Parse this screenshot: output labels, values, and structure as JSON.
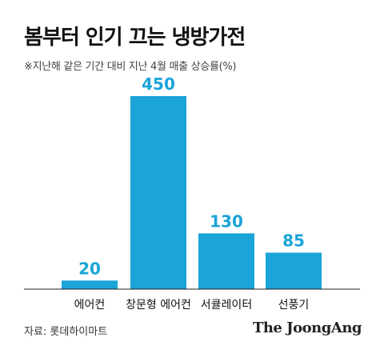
{
  "title": "봄부터 인기 끄는 냉방가전",
  "subtitle": "※지난해 같은 기간 대비 지난 4월 매출 상승률(%)",
  "source": "자료: 롯데하이마트",
  "brand": "The JoongAng",
  "colors": {
    "bar": "#1aa4d8",
    "value_label": "#1aa4d8",
    "axis": "#222222"
  },
  "chart_data": {
    "type": "bar",
    "title": "봄부터 인기 끄는 냉방가전",
    "subtitle": "※지난해 같은 기간 대비 지난 4월 매출 상승률(%)",
    "categories": [
      "에어컨",
      "창문형 에어컨",
      "서큘레이터",
      "선풍기"
    ],
    "values": [
      20,
      450,
      130,
      85
    ],
    "data_labels": [
      "20",
      "450",
      "130",
      "85"
    ],
    "xlabel": "",
    "ylabel": "",
    "ylim": [
      0,
      500
    ],
    "grid": false,
    "legend": "none"
  }
}
